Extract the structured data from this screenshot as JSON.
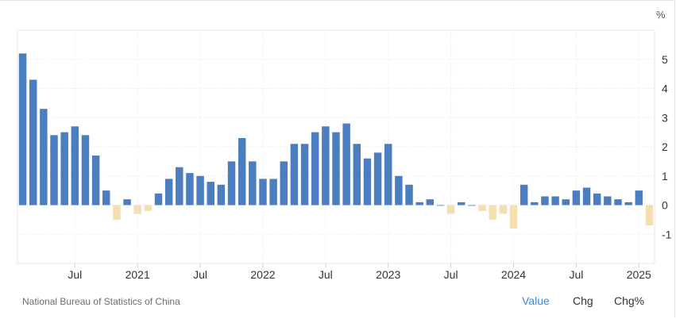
{
  "chart_data": {
    "type": "bar",
    "unit": "%",
    "ylim": [
      -2,
      6
    ],
    "yticks": [
      -1,
      0,
      1,
      2,
      3,
      4,
      5
    ],
    "grid": true,
    "colors": {
      "positive": "#4a7ebf",
      "negative": "#f5deb0",
      "grid": "#e6e6e6"
    },
    "categories": [
      "2020-02",
      "2020-03",
      "2020-04",
      "2020-05",
      "2020-06",
      "2020-07",
      "2020-08",
      "2020-09",
      "2020-10",
      "2020-11",
      "2020-12",
      "2021-01",
      "2021-02",
      "2021-03",
      "2021-04",
      "2021-05",
      "2021-06",
      "2021-07",
      "2021-08",
      "2021-09",
      "2021-10",
      "2021-11",
      "2021-12",
      "2022-01",
      "2022-02",
      "2022-03",
      "2022-04",
      "2022-05",
      "2022-06",
      "2022-07",
      "2022-08",
      "2022-09",
      "2022-10",
      "2022-11",
      "2022-12",
      "2023-01",
      "2023-02",
      "2023-03",
      "2023-04",
      "2023-05",
      "2023-06",
      "2023-07",
      "2023-08",
      "2023-09",
      "2023-10",
      "2023-11",
      "2023-12",
      "2024-01",
      "2024-02",
      "2024-03",
      "2024-04",
      "2024-05",
      "2024-06",
      "2024-07",
      "2024-08",
      "2024-09",
      "2024-10",
      "2024-11",
      "2024-12",
      "2025-01",
      "2025-02"
    ],
    "values": [
      5.2,
      4.3,
      3.3,
      2.4,
      2.5,
      2.7,
      2.4,
      1.7,
      0.5,
      -0.5,
      0.2,
      -0.3,
      -0.2,
      0.4,
      0.9,
      1.3,
      1.1,
      1.0,
      0.8,
      0.7,
      1.5,
      2.3,
      1.5,
      0.9,
      0.9,
      1.5,
      2.1,
      2.1,
      2.5,
      2.7,
      2.5,
      2.8,
      2.1,
      1.6,
      1.8,
      2.1,
      1.0,
      0.7,
      0.1,
      0.2,
      0.0,
      -0.3,
      0.1,
      0.0,
      -0.2,
      -0.5,
      -0.3,
      -0.8,
      0.7,
      0.1,
      0.3,
      0.3,
      0.2,
      0.5,
      0.6,
      0.4,
      0.3,
      0.2,
      0.1,
      0.5,
      -0.7
    ],
    "xticks": [
      {
        "index": 5,
        "label": "Jul"
      },
      {
        "index": 11,
        "label": "2021"
      },
      {
        "index": 17,
        "label": "Jul"
      },
      {
        "index": 23,
        "label": "2022"
      },
      {
        "index": 29,
        "label": "Jul"
      },
      {
        "index": 35,
        "label": "2023"
      },
      {
        "index": 41,
        "label": "Jul"
      },
      {
        "index": 47,
        "label": "2024"
      },
      {
        "index": 53,
        "label": "Jul"
      },
      {
        "index": 59,
        "label": "2025"
      }
    ]
  },
  "footer": {
    "source": "National Bureau of Statistics of China",
    "tabs": {
      "value": "Value",
      "chg": "Chg",
      "chg_pct": "Chg%"
    }
  }
}
